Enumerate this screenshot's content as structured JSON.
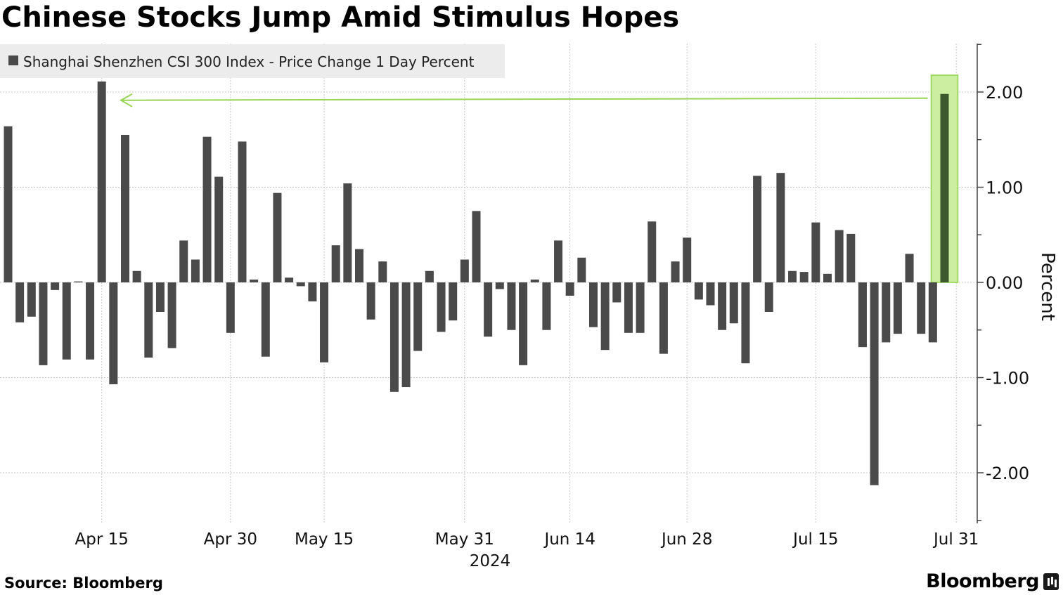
{
  "title": "Chinese Stocks Jump Amid Stimulus Hopes",
  "source": "Source: Bloomberg",
  "brand": "Bloomberg",
  "chart_data": {
    "type": "bar",
    "legend": "Shanghai Shenzhen CSI 300 Index - Price Change 1 Day Percent",
    "legend_position": "top-left",
    "ylabel": "Percent",
    "ylim": [
      -2.52,
      2.52
    ],
    "yticks": [
      "-2.00",
      "-1.00",
      "0.00",
      "1.00",
      "2.00"
    ],
    "year_label": "2024",
    "grid": true,
    "x_ticks": [
      {
        "label": "Apr 15",
        "index": 8
      },
      {
        "label": "Apr 30",
        "index": 19
      },
      {
        "label": "May 15",
        "index": 27
      },
      {
        "label": "May 31",
        "index": 39
      },
      {
        "label": "Jun 14",
        "index": 48
      },
      {
        "label": "Jun 28",
        "index": 58
      },
      {
        "label": "Jul 15",
        "index": 69
      },
      {
        "label": "Jul 31",
        "index": 81
      }
    ],
    "values": [
      1.64,
      -0.42,
      -0.36,
      -0.87,
      -0.08,
      -0.81,
      0.01,
      -0.81,
      2.11,
      -1.07,
      1.55,
      0.12,
      -0.79,
      -0.31,
      -0.69,
      0.44,
      0.24,
      1.53,
      1.11,
      -0.53,
      1.48,
      0.03,
      -0.78,
      0.94,
      0.05,
      -0.04,
      -0.2,
      -0.84,
      0.39,
      1.04,
      0.35,
      -0.39,
      0.22,
      -1.15,
      -1.1,
      -0.72,
      0.12,
      -0.52,
      -0.4,
      0.24,
      0.75,
      -0.57,
      -0.07,
      -0.5,
      -0.87,
      0.03,
      -0.5,
      0.44,
      -0.14,
      0.26,
      -0.47,
      -0.71,
      -0.21,
      -0.53,
      -0.53,
      0.64,
      -0.75,
      0.22,
      0.47,
      -0.18,
      -0.24,
      -0.5,
      -0.43,
      -0.85,
      1.12,
      -0.31,
      1.15,
      0.12,
      0.11,
      0.63,
      0.09,
      0.55,
      0.51,
      -0.68,
      -2.13,
      -0.63,
      -0.54,
      0.3,
      -0.54,
      -0.63,
      1.98
    ],
    "highlight_index": 80,
    "colors": {
      "bar": "#4a4a4a",
      "highlight_bar": "#3d5a2e",
      "highlight_fill": "#cbeea0",
      "highlight_stroke": "#8fd24a",
      "arrow": "#9ad455",
      "grid": "#c8c8c8",
      "legend_bg": "#ececec"
    }
  }
}
